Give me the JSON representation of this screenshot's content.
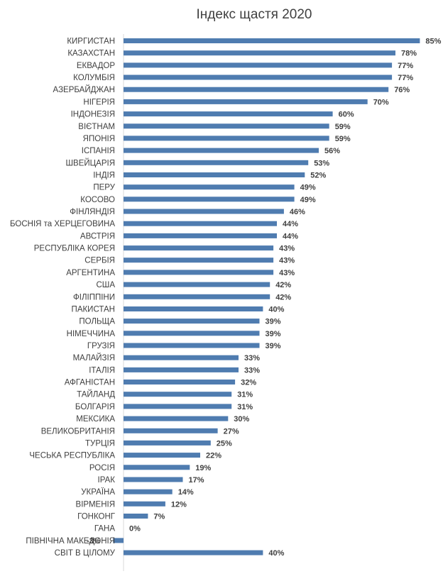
{
  "chart_data": {
    "type": "bar",
    "orientation": "horizontal",
    "title": "Індекс щастя 2020",
    "xlabel": "",
    "ylabel": "",
    "value_format": "percent",
    "xlim": [
      -3,
      85
    ],
    "grid": false,
    "bar_color": "#4f7cb0",
    "categories": [
      "КИРГИСТАН",
      "КАЗАХСТАН",
      "ЕКВАДОР",
      "КОЛУМБІЯ",
      "АЗЕРБАЙДЖАН",
      "НІГЕРІЯ",
      "ІНДОНЕЗІЯ",
      "ВІЄТНАМ",
      "ЯПОНІЯ",
      "ІСПАНІЯ",
      "ШВЕЙЦАРІЯ",
      "ІНДІЯ",
      "ПЕРУ",
      "КОСОВО",
      "ФІНЛЯНДІЯ",
      "БОСНІЯ та ХЕРЦЕГОВИНА",
      "АВСТРІЯ",
      "РЕСПУБЛІКА КОРЕЯ",
      "СЕРБІЯ",
      "АРГЕНТИНА",
      "США",
      "ФІЛІППІНИ",
      "ПАКИСТАН",
      "ПОЛЬЩА",
      "НІМЕЧЧИНА",
      "ГРУЗІЯ",
      "МАЛАЙЗІЯ",
      "ІТАЛІЯ",
      "АФГАНІСТАН",
      "ТАЙЛАНД",
      "БОЛГАРІЯ",
      "МЕКСИКА",
      "ВЕЛИКОБРИТАНІЯ",
      "ТУРЦІЯ",
      "ЧЕСЬКА РЕСПУБЛІКА",
      "РОСІЯ",
      "ІРАК",
      "УКРАЇНА",
      "ВІРМЕНІЯ",
      "ГОНКОНГ",
      "ГАНА",
      "ПІВНІЧНА МАКЕДОНІЯ",
      "СВІТ В ЦІЛОМУ"
    ],
    "values": [
      85,
      78,
      77,
      77,
      76,
      70,
      60,
      59,
      59,
      56,
      53,
      52,
      49,
      49,
      46,
      44,
      44,
      43,
      43,
      43,
      42,
      42,
      40,
      39,
      39,
      39,
      33,
      33,
      32,
      31,
      31,
      30,
      27,
      25,
      22,
      19,
      17,
      14,
      12,
      7,
      0,
      -3,
      40
    ],
    "value_labels": [
      "85%",
      "78%",
      "77%",
      "77%",
      "76%",
      "70%",
      "60%",
      "59%",
      "59%",
      "56%",
      "53%",
      "52%",
      "49%",
      "49%",
      "46%",
      "44%",
      "44%",
      "43%",
      "43%",
      "43%",
      "42%",
      "42%",
      "40%",
      "39%",
      "39%",
      "39%",
      "33%",
      "33%",
      "32%",
      "31%",
      "31%",
      "30%",
      "27%",
      "25%",
      "22%",
      "19%",
      "17%",
      "14%",
      "12%",
      "7%",
      "0%",
      "-3%",
      "40%"
    ]
  }
}
